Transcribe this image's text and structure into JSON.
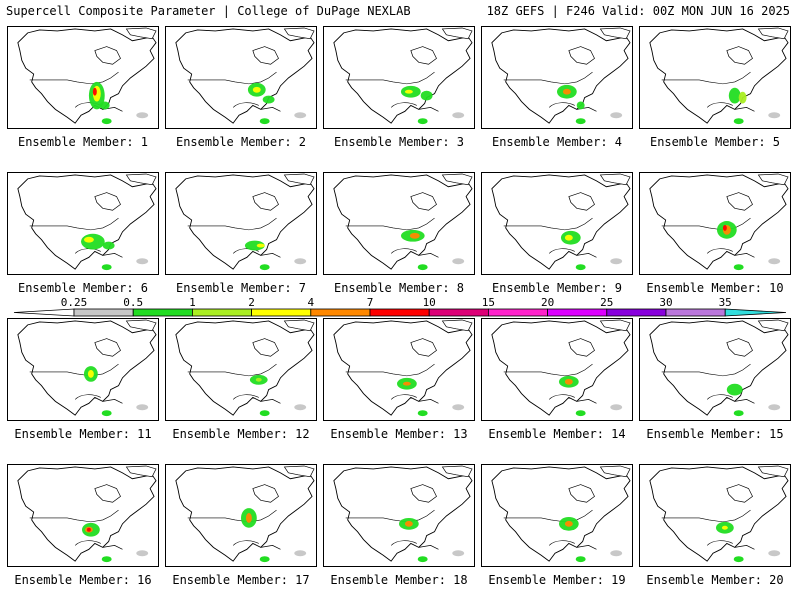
{
  "header": {
    "title": "Supercell Composite Parameter | College of DuPage NEXLAB",
    "run_info": "18Z GEFS | F246 Valid: 00Z MON JUN 16 2025"
  },
  "panel_label_prefix": "Ensemble Member: ",
  "members": [
    {
      "id": "1"
    },
    {
      "id": "2"
    },
    {
      "id": "3"
    },
    {
      "id": "4"
    },
    {
      "id": "5"
    },
    {
      "id": "6"
    },
    {
      "id": "7"
    },
    {
      "id": "8"
    },
    {
      "id": "9"
    },
    {
      "id": "10"
    },
    {
      "id": "11"
    },
    {
      "id": "12"
    },
    {
      "id": "13"
    },
    {
      "id": "14"
    },
    {
      "id": "15"
    },
    {
      "id": "16"
    },
    {
      "id": "17"
    },
    {
      "id": "18"
    },
    {
      "id": "19"
    },
    {
      "id": "20"
    }
  ],
  "colorbar": {
    "ticks": [
      "0.25",
      "0.5",
      "1",
      "2",
      "4",
      "7",
      "10",
      "15",
      "20",
      "25",
      "30",
      "35"
    ],
    "colors": [
      "#ffffff",
      "#c8c8c8",
      "#22dd22",
      "#aaee22",
      "#ffff00",
      "#ff8800",
      "#ff0000",
      "#dd0077",
      "#ff22cc",
      "#dd00ff",
      "#8800dd",
      "#bb77dd",
      "#33dddd"
    ]
  }
}
